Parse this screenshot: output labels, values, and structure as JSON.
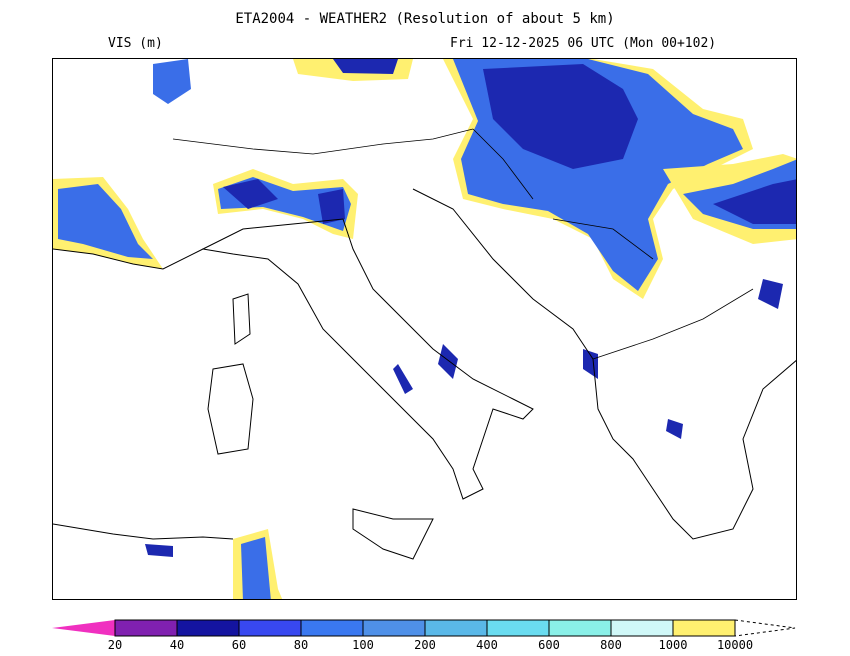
{
  "header": {
    "title": "ETA2004 - WEATHER2 (Resolution of about 5 km)",
    "variable": "VIS (m)",
    "valid_time": "Fri 12-12-2025 06 UTC (Mon 00+102)"
  },
  "legend": {
    "labels": [
      "20",
      "40",
      "60",
      "80",
      "100",
      "200",
      "400",
      "600",
      "800",
      "1000",
      "10000"
    ],
    "colors": [
      "#8020b0",
      "#1414a0",
      "#3848f0",
      "#3a78f0",
      "#4f90e8",
      "#5ab8e8",
      "#6adcf0",
      "#8af0e8",
      "#d0f8f8",
      "#fff070"
    ],
    "under_color": "#f030c0"
  }
}
